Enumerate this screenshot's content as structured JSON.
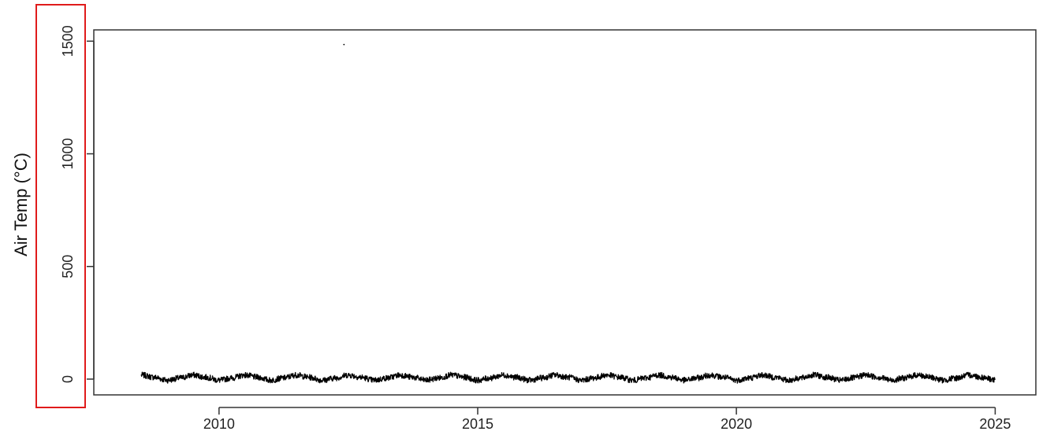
{
  "chart_data": {
    "type": "line",
    "title": "",
    "xlabel": "",
    "ylabel": "Air Temp (°C)",
    "xlim": [
      "2007-08-01",
      "2025-10-15"
    ],
    "ylim": [
      -70,
      1550
    ],
    "x_ticks": [
      "2010",
      "2015",
      "2020",
      "2025"
    ],
    "y_ticks": [
      "0",
      "500",
      "1000",
      "1500"
    ],
    "grid": false,
    "legend": "none",
    "series": [
      {
        "color": "#000000",
        "x": [
          "2008-07",
          "2008-10",
          "2009-01",
          "2009-04",
          "2009-07",
          "2009-10",
          "2010-01",
          "2010-04",
          "2010-07",
          "2010-10",
          "2011-01",
          "2011-04",
          "2011-07",
          "2011-10",
          "2012-01",
          "2012-04",
          "2012-07",
          "2012-10",
          "2013-01",
          "2013-04",
          "2013-07",
          "2013-10",
          "2014-01",
          "2014-04",
          "2014-07",
          "2014-10",
          "2015-01",
          "2015-04",
          "2015-07",
          "2015-10",
          "2016-01",
          "2016-04",
          "2016-07",
          "2016-10",
          "2017-01",
          "2017-04",
          "2017-07",
          "2017-10",
          "2018-01",
          "2018-04",
          "2018-07",
          "2018-10",
          "2019-01",
          "2019-04",
          "2019-07",
          "2019-10",
          "2020-01",
          "2020-04",
          "2020-07",
          "2020-10",
          "2021-01",
          "2021-04",
          "2021-07",
          "2021-10",
          "2022-01",
          "2022-04",
          "2022-07",
          "2022-10",
          "2023-01",
          "2023-04",
          "2023-07",
          "2023-10",
          "2024-01",
          "2024-04",
          "2024-07",
          "2024-10",
          "2025-01"
        ],
        "y": [
          18,
          8,
          -5,
          5,
          18,
          8,
          -5,
          5,
          18,
          8,
          -5,
          5,
          18,
          8,
          -5,
          5,
          18,
          8,
          -5,
          5,
          18,
          8,
          -5,
          5,
          18,
          8,
          -5,
          5,
          18,
          8,
          -5,
          5,
          18,
          8,
          -5,
          5,
          18,
          8,
          -5,
          5,
          18,
          8,
          -5,
          5,
          18,
          8,
          -5,
          5,
          18,
          8,
          -5,
          5,
          18,
          8,
          -5,
          5,
          18,
          8,
          -5,
          5,
          18,
          8,
          -5,
          5,
          18,
          8,
          -3
        ]
      },
      {
        "color": "#000000",
        "marker": "point",
        "x": [
          "2012-06"
        ],
        "y": [
          1485
        ]
      }
    ]
  }
}
